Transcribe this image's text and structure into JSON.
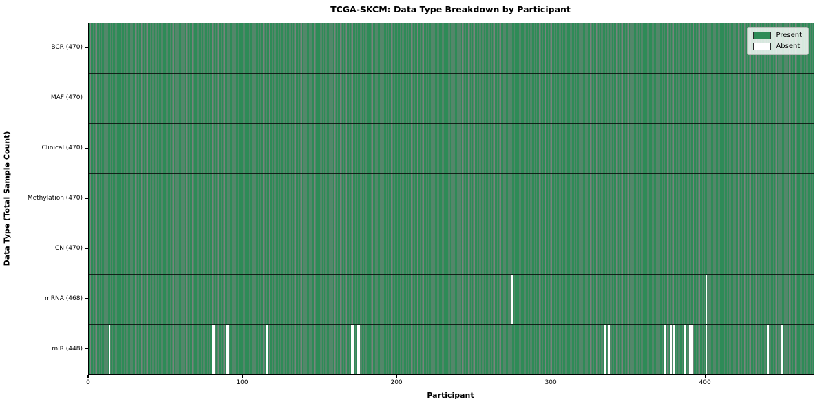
{
  "header": {
    "title": "TCGA-SKCM: Data Type Breakdown by Participant"
  },
  "axes": {
    "xlabel": "Participant",
    "ylabel": "Data Type (Total Sample Count)",
    "x_ticks": [
      0,
      100,
      200,
      300,
      400
    ],
    "x_max": 470
  },
  "legend": {
    "present_label": "Present",
    "absent_label": "Absent"
  },
  "colors": {
    "present": "#2e8b57",
    "absent": "#ffffff",
    "bar_edge": "rgba(8,30,18,0.55)",
    "row_line": "rgba(0,0,0,0.75)",
    "spine": "#000000"
  },
  "chart_data": {
    "type": "heatmap",
    "title": "TCGA-SKCM: Data Type Breakdown by Participant",
    "xlabel": "Participant",
    "ylabel": "Data Type (Total Sample Count)",
    "x_range": [
      0,
      470
    ],
    "x_tick_labels": [
      "0",
      "100",
      "200",
      "300",
      "400"
    ],
    "grid": false,
    "legend": [
      "Present",
      "Absent"
    ],
    "legend_position": "upper right",
    "value_encoding": {
      "present": 1,
      "absent": 0
    },
    "rows": [
      {
        "label": "BCR (470)",
        "data_type": "BCR",
        "present_count": 470,
        "total_participants": 470,
        "absent_participants": []
      },
      {
        "label": "MAF (470)",
        "data_type": "MAF",
        "present_count": 470,
        "total_participants": 470,
        "absent_participants": []
      },
      {
        "label": "Clinical (470)",
        "data_type": "Clinical",
        "present_count": 470,
        "total_participants": 470,
        "absent_participants": []
      },
      {
        "label": "Methylation (470)",
        "data_type": "Methylation",
        "present_count": 470,
        "total_participants": 470,
        "absent_participants": []
      },
      {
        "label": "CN (470)",
        "data_type": "CN",
        "present_count": 470,
        "total_participants": 470,
        "absent_participants": []
      },
      {
        "label": "mRNA (468)",
        "data_type": "mRNA",
        "present_count": 468,
        "total_participants": 470,
        "absent_participants": [
          274,
          400
        ]
      },
      {
        "label": "miR (448)",
        "data_type": "miR",
        "present_count": 448,
        "total_participants": 470,
        "absent_participants": [
          13,
          80,
          81,
          89,
          90,
          115,
          170,
          171,
          174,
          175,
          334,
          337,
          373,
          377,
          379,
          386,
          389,
          390,
          391,
          400,
          440,
          449
        ]
      }
    ]
  }
}
